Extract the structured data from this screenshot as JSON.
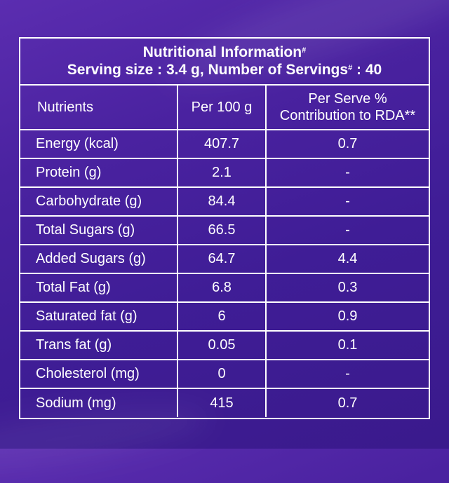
{
  "title": "Nutritional Information",
  "title_mark": "#",
  "serving_line": {
    "part1": "Serving size : 3.4 g, Number of Servings",
    "mark": "#",
    "part2": " : 40"
  },
  "columns": {
    "nutrients": "Nutrients",
    "per100": "Per 100 g",
    "per_serve_line1": "Per Serve %",
    "per_serve_line2": "Contribution to RDA**"
  },
  "rows": [
    {
      "name": "Energy (kcal)",
      "per100": "407.7",
      "rda": "0.7"
    },
    {
      "name": "Protein (g)",
      "per100": "2.1",
      "rda": "-"
    },
    {
      "name": "Carbohydrate (g)",
      "per100": "84.4",
      "rda": "-"
    },
    {
      "name": "Total Sugars (g)",
      "per100": "66.5",
      "rda": "-"
    },
    {
      "name": "Added Sugars (g)",
      "per100": "64.7",
      "rda": "4.4"
    },
    {
      "name": "Total Fat (g)",
      "per100": "6.8",
      "rda": "0.3"
    },
    {
      "name": "Saturated fat (g)",
      "per100": "6",
      "rda": "0.9"
    },
    {
      "name": "Trans fat (g)",
      "per100": "0.05",
      "rda": "0.1"
    },
    {
      "name": "Cholesterol (mg)",
      "per100": "0",
      "rda": "-"
    },
    {
      "name": "Sodium (mg)",
      "per100": "415",
      "rda": "0.7"
    }
  ],
  "colors": {
    "background": "#4a22a0",
    "text": "#ffffff",
    "border": "#ffffff"
  }
}
